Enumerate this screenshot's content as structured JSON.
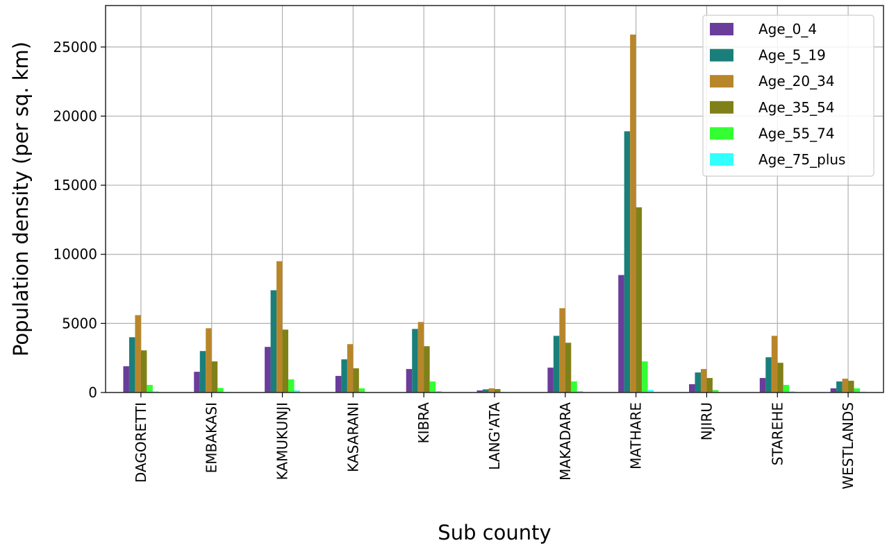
{
  "chart_data": {
    "type": "bar",
    "xlabel": "Sub county",
    "ylabel": "Population density (per sq. km)",
    "ylim": [
      0,
      28000
    ],
    "yticks": [
      0,
      5000,
      10000,
      15000,
      20000,
      25000
    ],
    "grid": true,
    "legend_position": "top-right",
    "categories": [
      "DAGORETTI",
      "EMBAKASI",
      "KAMUKUNJI",
      "KASARANI",
      "KIBRA",
      "LANG'ATA",
      "MAKADARA",
      "MATHARE",
      "NJIRU",
      "STAREHE",
      "WESTLANDS"
    ],
    "series": [
      {
        "name": "Age_0_4",
        "color": "#6a3d9a",
        "values": [
          1900,
          1500,
          3300,
          1200,
          1700,
          150,
          1800,
          8500,
          600,
          1050,
          300
        ]
      },
      {
        "name": "Age_5_19",
        "color": "#1a7f7a",
        "values": [
          4000,
          3000,
          7400,
          2400,
          4600,
          230,
          4100,
          18900,
          1450,
          2550,
          800
        ]
      },
      {
        "name": "Age_20_34",
        "color": "#b8862a",
        "values": [
          5600,
          4650,
          9500,
          3500,
          5100,
          300,
          6100,
          25900,
          1700,
          4100,
          1000
        ]
      },
      {
        "name": "Age_35_54",
        "color": "#808019",
        "values": [
          3050,
          2250,
          4550,
          1750,
          3350,
          250,
          3600,
          13400,
          1050,
          2150,
          850
        ]
      },
      {
        "name": "Age_55_74",
        "color": "#33ff33",
        "values": [
          550,
          330,
          950,
          300,
          800,
          40,
          800,
          2250,
          180,
          550,
          300
        ]
      },
      {
        "name": "Age_75_plus",
        "color": "#33ffff",
        "values": [
          80,
          50,
          150,
          40,
          100,
          10,
          100,
          180,
          30,
          80,
          60
        ]
      }
    ]
  }
}
